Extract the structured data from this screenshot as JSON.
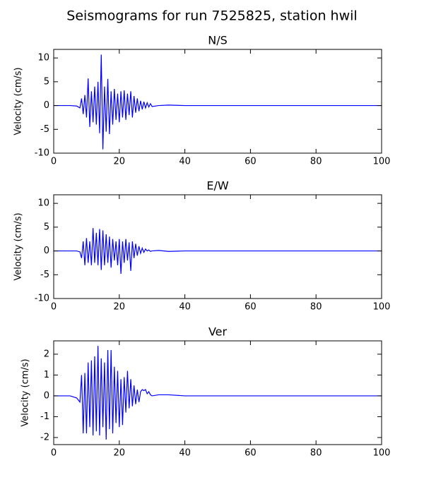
{
  "title": "Seismograms for run 7525825, station hwil",
  "chart_data": [
    {
      "type": "line",
      "title": "N/S",
      "y_label": "Velocity (cm/s)",
      "color": "#0000ff",
      "x": [
        0,
        5,
        7,
        8,
        8.5,
        9,
        9.5,
        10,
        10.5,
        11,
        11.5,
        12,
        12.5,
        13,
        13.5,
        14,
        14.5,
        15,
        15.5,
        16,
        16.5,
        17,
        17.5,
        18,
        18.5,
        19,
        19.5,
        20,
        20.5,
        21,
        21.5,
        22,
        22.5,
        23,
        23.5,
        24,
        24.5,
        25,
        25.5,
        26,
        26.5,
        27,
        27.5,
        28,
        28.5,
        29,
        29.5,
        30,
        32,
        35,
        40,
        100
      ],
      "values": [
        0,
        0,
        -0.1,
        -0.5,
        1.5,
        -1.8,
        2.2,
        -2.5,
        5.7,
        -4.5,
        3,
        -3.5,
        4,
        -4,
        5,
        -5.8,
        10.7,
        -9.2,
        4,
        -5.5,
        5.6,
        -6,
        3,
        -4,
        3.5,
        -3,
        2.5,
        -3.5,
        3,
        -2.5,
        3.2,
        -3,
        2.5,
        -2,
        3,
        -2.5,
        2,
        -1.5,
        1.5,
        -1.2,
        1,
        -0.8,
        0.8,
        -0.5,
        0.6,
        -0.3,
        0.4,
        -0.2,
        0,
        0.1,
        0,
        0
      ],
      "xlim": [
        0,
        100
      ],
      "xticks": [
        0,
        20,
        40,
        60,
        80,
        100
      ],
      "ylim": [
        -10,
        11.8
      ],
      "yticks": [
        -10,
        -5,
        0,
        5,
        10
      ]
    },
    {
      "type": "line",
      "title": "E/W",
      "y_label": "Velocity (cm/s)",
      "color": "#0000ff",
      "x": [
        0,
        5,
        7,
        8,
        8.5,
        9,
        9.5,
        10,
        10.5,
        11,
        11.5,
        12,
        12.5,
        13,
        13.5,
        14,
        14.5,
        15,
        15.5,
        16,
        16.5,
        17,
        17.5,
        18,
        18.5,
        19,
        19.5,
        20,
        20.5,
        21,
        21.5,
        22,
        22.5,
        23,
        23.5,
        24,
        24.5,
        25,
        25.5,
        26,
        26.5,
        27,
        27.5,
        28,
        28.5,
        29,
        29.5,
        30,
        32,
        35,
        40,
        100
      ],
      "values": [
        0,
        0,
        0,
        -0.2,
        -1.5,
        2,
        -3,
        2.7,
        -2.5,
        2,
        -3,
        4.8,
        -2.5,
        3.8,
        -3,
        4.6,
        -4,
        4.3,
        -3,
        3.5,
        -2.5,
        3,
        -3.5,
        2.5,
        -2,
        2,
        -3,
        2.5,
        -4.8,
        2,
        -2.5,
        2.5,
        -2,
        1.8,
        -4.2,
        2,
        -1.5,
        1.5,
        -1,
        1,
        -0.5,
        0.6,
        -0.3,
        0.4,
        0,
        0.2,
        -0.1,
        0,
        0.1,
        -0.1,
        0,
        0
      ],
      "xlim": [
        0,
        100
      ],
      "xticks": [
        0,
        20,
        40,
        60,
        80,
        100
      ],
      "ylim": [
        -10,
        11.8
      ],
      "yticks": [
        -10,
        -5,
        0,
        5,
        10
      ]
    },
    {
      "type": "line",
      "title": "Ver",
      "y_label": "Velocity (cm/s)",
      "color": "#0000ff",
      "x": [
        0,
        5,
        7,
        8,
        8.5,
        9,
        9.5,
        10,
        10.5,
        11,
        11.5,
        12,
        12.5,
        13,
        13.5,
        14,
        14.5,
        15,
        15.5,
        16,
        16.5,
        17,
        17.5,
        18,
        18.5,
        19,
        19.5,
        20,
        20.5,
        21,
        21.5,
        22,
        22.5,
        23,
        23.5,
        24,
        24.5,
        25,
        25.5,
        26,
        26.5,
        27,
        27.5,
        28,
        28.5,
        29,
        29.5,
        30,
        32,
        35,
        40,
        100
      ],
      "values": [
        0,
        0,
        -0.1,
        -0.3,
        1,
        -1.8,
        1.1,
        -1.8,
        1.6,
        -1.5,
        1.7,
        -1.9,
        1.9,
        -1.7,
        2.4,
        -1.9,
        1.8,
        -1.5,
        1.6,
        -2.1,
        2.2,
        -1.6,
        2.2,
        -1.8,
        1.4,
        -1.3,
        1.2,
        -1.5,
        0.8,
        -1.4,
        0.9,
        -0.8,
        1.2,
        -0.6,
        0.8,
        -0.5,
        0.5,
        -0.4,
        0.3,
        -0.3,
        0.2,
        0.3,
        0.25,
        0.3,
        0.1,
        0.2,
        0.05,
        0,
        0.05,
        0.05,
        0,
        0
      ],
      "xlim": [
        0,
        100
      ],
      "xticks": [
        0,
        20,
        40,
        60,
        80,
        100
      ],
      "ylim": [
        -2.34,
        2.64
      ],
      "yticks": [
        -2,
        -1,
        0,
        1,
        2
      ]
    }
  ]
}
